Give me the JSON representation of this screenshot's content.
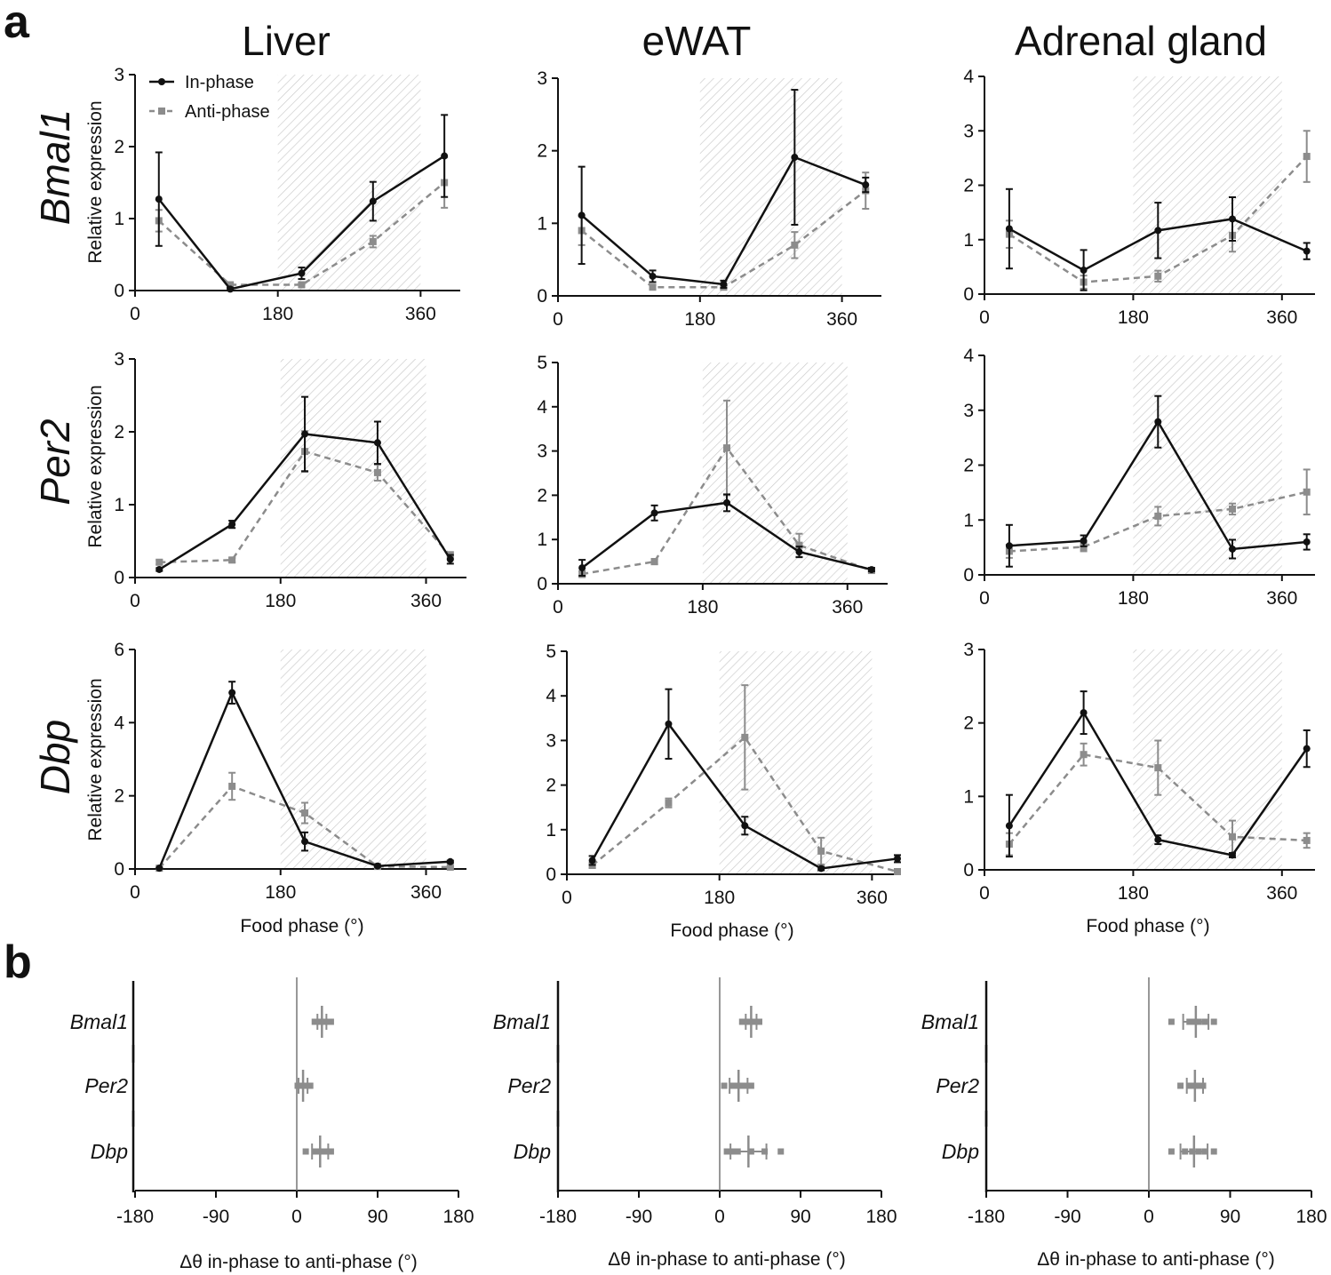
{
  "panel_labels": {
    "a": "a",
    "b": "b"
  },
  "colors": {
    "in_phase": "#111111",
    "anti_phase": "#8c8c8c",
    "hatch": "#bdbdbd"
  },
  "legend": {
    "in_phase": "In-phase",
    "anti_phase": "Anti-phase"
  },
  "tissues": [
    "Liver",
    "eWAT",
    "Adrenal gland"
  ],
  "genes": [
    "Bmal1",
    "Per2",
    "Dbp"
  ],
  "y_label": "Relative expression",
  "x_label": "Food phase (°)",
  "b_x_label": "Δθ in-phase to anti-phase (°)",
  "chart_data": [
    {
      "type": "line",
      "tissue": "Liver",
      "gene": "Bmal1",
      "ylim": [
        0,
        3
      ],
      "yticks": [
        "0",
        "1",
        "2",
        "3"
      ],
      "xlim": [
        0,
        410
      ],
      "xticks": [
        "0",
        "180",
        "360"
      ],
      "shade": [
        180,
        360
      ],
      "x": [
        30,
        120,
        210,
        300,
        390
      ],
      "series": [
        {
          "name": "In-phase",
          "values": [
            1.27,
            0.02,
            0.24,
            1.24,
            1.87
          ],
          "err": [
            0.65,
            0.02,
            0.08,
            0.27,
            0.57
          ]
        },
        {
          "name": "Anti-phase",
          "values": [
            0.97,
            0.08,
            0.08,
            0.68,
            1.5
          ],
          "err": [
            0.15,
            0.02,
            0.03,
            0.08,
            0.35
          ]
        }
      ]
    },
    {
      "type": "line",
      "tissue": "eWAT",
      "gene": "Bmal1",
      "ylim": [
        0,
        3
      ],
      "yticks": [
        "0",
        "1",
        "2",
        "3"
      ],
      "xlim": [
        0,
        410
      ],
      "xticks": [
        "0",
        "180",
        "360"
      ],
      "shade": [
        180,
        360
      ],
      "x": [
        30,
        120,
        210,
        300,
        390
      ],
      "series": [
        {
          "name": "In-phase",
          "values": [
            1.11,
            0.27,
            0.16,
            1.91,
            1.53
          ],
          "err": [
            0.67,
            0.08,
            0.05,
            0.93,
            0.1
          ]
        },
        {
          "name": "Anti-phase",
          "values": [
            0.9,
            0.12,
            0.12,
            0.7,
            1.45
          ],
          "err": [
            0.2,
            0.03,
            0.03,
            0.18,
            0.25
          ]
        }
      ]
    },
    {
      "type": "line",
      "tissue": "Adrenal gland",
      "gene": "Bmal1",
      "ylim": [
        0,
        4
      ],
      "yticks": [
        "0",
        "1",
        "2",
        "3",
        "4"
      ],
      "xlim": [
        0,
        400
      ],
      "xticks": [
        "0",
        "180",
        "360"
      ],
      "shade": [
        180,
        360
      ],
      "x": [
        30,
        120,
        210,
        300,
        390
      ],
      "series": [
        {
          "name": "In-phase",
          "values": [
            1.2,
            0.44,
            1.17,
            1.38,
            0.79
          ],
          "err": [
            0.73,
            0.37,
            0.51,
            0.4,
            0.15
          ]
        },
        {
          "name": "Anti-phase",
          "values": [
            1.1,
            0.22,
            0.33,
            1.08,
            2.53
          ],
          "err": [
            0.25,
            0.12,
            0.1,
            0.3,
            0.47
          ]
        }
      ]
    },
    {
      "type": "line",
      "tissue": "Liver",
      "gene": "Per2",
      "ylim": [
        0,
        3
      ],
      "yticks": [
        "0",
        "1",
        "2",
        "3"
      ],
      "xlim": [
        0,
        410
      ],
      "xticks": [
        "0",
        "180",
        "360"
      ],
      "shade": [
        180,
        360
      ],
      "x": [
        30,
        120,
        210,
        300,
        390
      ],
      "series": [
        {
          "name": "In-phase",
          "values": [
            0.11,
            0.73,
            1.97,
            1.85,
            0.25
          ],
          "err": [
            0.02,
            0.05,
            0.51,
            0.29,
            0.06
          ]
        },
        {
          "name": "Anti-phase",
          "values": [
            0.21,
            0.24,
            1.73,
            1.44,
            0.3
          ],
          "err": [
            0.03,
            0.03,
            0.28,
            0.11,
            0.05
          ]
        }
      ]
    },
    {
      "type": "line",
      "tissue": "eWAT",
      "gene": "Per2",
      "ylim": [
        0,
        5
      ],
      "yticks": [
        "0",
        "1",
        "2",
        "3",
        "4",
        "5"
      ],
      "xlim": [
        0,
        410
      ],
      "xticks": [
        "0",
        "180",
        "360"
      ],
      "shade": [
        180,
        360
      ],
      "x": [
        30,
        120,
        210,
        300,
        390
      ],
      "series": [
        {
          "name": "In-phase",
          "values": [
            0.36,
            1.6,
            1.83,
            0.72,
            0.32
          ],
          "err": [
            0.18,
            0.17,
            0.19,
            0.12,
            0.04
          ]
        },
        {
          "name": "Anti-phase",
          "values": [
            0.22,
            0.5,
            3.07,
            0.87,
            0.3
          ],
          "err": [
            0.07,
            0.06,
            1.07,
            0.26,
            0.04
          ]
        }
      ]
    },
    {
      "type": "line",
      "tissue": "Adrenal gland",
      "gene": "Per2",
      "ylim": [
        0,
        4
      ],
      "yticks": [
        "0",
        "1",
        "2",
        "3",
        "4"
      ],
      "xlim": [
        0,
        400
      ],
      "xticks": [
        "0",
        "180",
        "360"
      ],
      "shade": [
        180,
        360
      ],
      "x": [
        30,
        120,
        210,
        300,
        390
      ],
      "series": [
        {
          "name": "In-phase",
          "values": [
            0.53,
            0.62,
            2.79,
            0.47,
            0.6
          ],
          "err": [
            0.38,
            0.1,
            0.47,
            0.17,
            0.14
          ]
        },
        {
          "name": "Anti-phase",
          "values": [
            0.43,
            0.51,
            1.07,
            1.2,
            1.51
          ],
          "err": [
            0.12,
            0.08,
            0.17,
            0.1,
            0.41
          ]
        }
      ]
    },
    {
      "type": "line",
      "tissue": "Liver",
      "gene": "Dbp",
      "ylim": [
        0,
        6
      ],
      "yticks": [
        "0",
        "2",
        "4",
        "6"
      ],
      "xlim": [
        0,
        410
      ],
      "xticks": [
        "0",
        "180",
        "360"
      ],
      "shade": [
        180,
        360
      ],
      "x": [
        30,
        120,
        210,
        300,
        390
      ],
      "series": [
        {
          "name": "In-phase",
          "values": [
            0.02,
            4.82,
            0.75,
            0.08,
            0.2
          ],
          "err": [
            0.01,
            0.3,
            0.25,
            0.02,
            0.03
          ]
        },
        {
          "name": "Anti-phase",
          "values": [
            0.02,
            2.26,
            1.53,
            0.07,
            0.05
          ],
          "err": [
            0.01,
            0.37,
            0.28,
            0.02,
            0.02
          ]
        }
      ]
    },
    {
      "type": "line",
      "tissue": "eWAT",
      "gene": "Dbp",
      "ylim": [
        0,
        5
      ],
      "yticks": [
        "0",
        "1",
        "2",
        "3",
        "4",
        "5"
      ],
      "xlim": [
        0,
        390
      ],
      "xticks": [
        "0",
        "180",
        "360"
      ],
      "shade": [
        180,
        360
      ],
      "x": [
        30,
        120,
        210,
        300,
        390
      ],
      "series": [
        {
          "name": "In-phase",
          "values": [
            0.31,
            3.37,
            1.09,
            0.13,
            0.35
          ],
          "err": [
            0.1,
            0.78,
            0.2,
            0.04,
            0.08
          ]
        },
        {
          "name": "Anti-phase",
          "values": [
            0.2,
            1.6,
            3.07,
            0.52,
            0.06
          ],
          "err": [
            0.06,
            0.1,
            1.17,
            0.3,
            0.03
          ]
        }
      ]
    },
    {
      "type": "line",
      "tissue": "Adrenal gland",
      "gene": "Dbp",
      "ylim": [
        0,
        3
      ],
      "yticks": [
        "0",
        "1",
        "2",
        "3"
      ],
      "xlim": [
        0,
        400
      ],
      "xticks": [
        "0",
        "180",
        "360"
      ],
      "shade": [
        180,
        360
      ],
      "x": [
        30,
        120,
        210,
        300,
        390
      ],
      "series": [
        {
          "name": "In-phase",
          "values": [
            0.6,
            2.14,
            0.41,
            0.2,
            1.65
          ],
          "err": [
            0.42,
            0.29,
            0.06,
            0.03,
            0.25
          ]
        },
        {
          "name": "Anti-phase",
          "values": [
            0.35,
            1.57,
            1.39,
            0.45,
            0.4
          ],
          "err": [
            0.15,
            0.15,
            0.37,
            0.22,
            0.1
          ]
        }
      ]
    },
    {
      "type": "scatter",
      "panel": "b",
      "tissue": "Liver",
      "xlim": [
        -180,
        180
      ],
      "xticks": [
        "-180",
        "-90",
        "0",
        "90",
        "180"
      ],
      "rows": [
        {
          "gene": "Bmal1",
          "points": [
            20,
            25,
            28,
            30,
            33,
            38
          ],
          "mean": 28,
          "err": 5
        },
        {
          "gene": "Per2",
          "points": [
            1,
            4,
            6,
            8,
            10,
            15
          ],
          "mean": 7,
          "err": 5
        },
        {
          "gene": "Dbp",
          "points": [
            10,
            20,
            25,
            30,
            34,
            38
          ],
          "mean": 26,
          "err": 9
        }
      ]
    },
    {
      "type": "scatter",
      "panel": "b",
      "tissue": "eWAT",
      "xlim": [
        -180,
        180
      ],
      "xticks": [
        "-180",
        "-90",
        "0",
        "90",
        "180"
      ],
      "rows": [
        {
          "gene": "Bmal1",
          "points": [
            25,
            30,
            33,
            36,
            40,
            44
          ],
          "mean": 35,
          "err": 6
        },
        {
          "gene": "Per2",
          "points": [
            5,
            15,
            20,
            25,
            28,
            35
          ],
          "mean": 21,
          "err": 10
        },
        {
          "gene": "Dbp",
          "points": [
            8,
            14,
            20,
            35,
            50,
            68
          ],
          "mean": 32,
          "err": 20
        }
      ]
    },
    {
      "type": "scatter",
      "panel": "b",
      "tissue": "Adrenal gland",
      "xlim": [
        -180,
        180
      ],
      "xticks": [
        "-180",
        "-90",
        "0",
        "90",
        "180"
      ],
      "rows": [
        {
          "gene": "Bmal1",
          "points": [
            25,
            45,
            50,
            55,
            62,
            72
          ],
          "mean": 52,
          "err": 14
        },
        {
          "gene": "Per2",
          "points": [
            35,
            45,
            50,
            55,
            58,
            60
          ],
          "mean": 51,
          "err": 9
        },
        {
          "gene": "Dbp",
          "points": [
            25,
            40,
            48,
            55,
            62,
            72
          ],
          "mean": 50,
          "err": 15
        }
      ]
    }
  ]
}
